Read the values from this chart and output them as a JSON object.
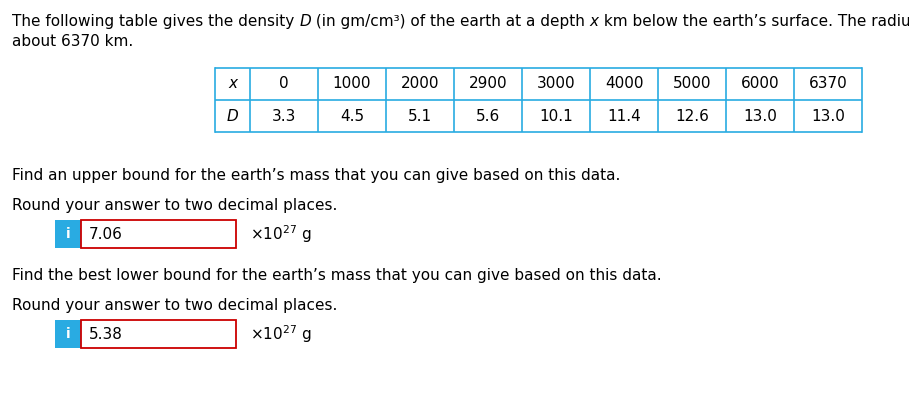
{
  "intro_text_line1": "The following table gives the density ",
  "intro_D": "D",
  "intro_text_line1b": " (in gm/cm³) of the earth at a depth ",
  "intro_x": "x",
  "intro_text_line1c": " km below the earth’s surface. The radius of the earth is",
  "intro_text_line2": "about 6370 km.",
  "table_x_label": "x",
  "table_D_label": "D",
  "x_values": [
    "0",
    "1000",
    "2000",
    "2900",
    "3000",
    "4000",
    "5000",
    "6000",
    "6370"
  ],
  "D_values": [
    "3.3",
    "4.5",
    "5.1",
    "5.6",
    "10.1",
    "11.4",
    "12.6",
    "13.0",
    "13.0"
  ],
  "table_line_color": "#29ABE2",
  "q1_text": "Find an upper bound for the earth’s mass that you can give based on this data.",
  "q1_round": "Round your answer to two decimal places.",
  "q1_answer": "7.06",
  "q2_text": "Find the best lower bound for the earth’s mass that you can give based on this data.",
  "q2_round": "Round your answer to two decimal places.",
  "q2_answer": "5.38",
  "icon_color": "#29ABE2",
  "icon_text": "i",
  "answer_box_border": "#CC0000",
  "answer_box_fill": "#FFFFFF",
  "bg_color": "#FFFFFF",
  "text_color": "#000000",
  "font_size_main": 11.0,
  "font_size_table": 11.0,
  "font_size_small": 7.5
}
